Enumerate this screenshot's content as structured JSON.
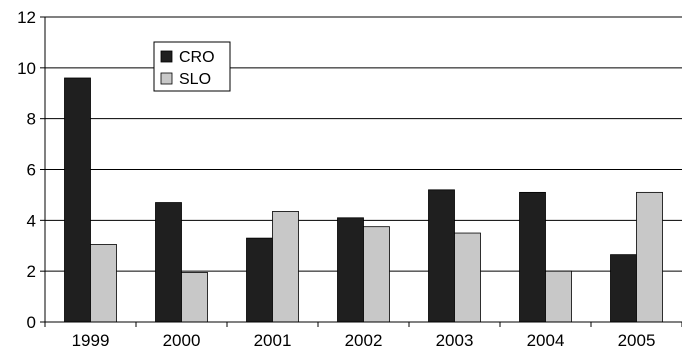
{
  "chart_data": {
    "type": "bar",
    "categories": [
      "1999",
      "2000",
      "2001",
      "2002",
      "2003",
      "2004",
      "2005"
    ],
    "series": [
      {
        "name": "CRO",
        "values": [
          9.6,
          4.7,
          3.3,
          4.1,
          5.2,
          5.1,
          2.65
        ],
        "color": "#1f1f1f"
      },
      {
        "name": "SLO",
        "values": [
          3.05,
          1.95,
          4.35,
          3.75,
          3.5,
          2.0,
          5.1
        ],
        "color": "#c8c8c8"
      }
    ],
    "ylim": [
      0,
      12
    ],
    "yticks": [
      "0",
      "2",
      "4",
      "6",
      "8",
      "10",
      "12"
    ],
    "grid": true,
    "legend_position": "top-left",
    "title": "",
    "xlabel": "",
    "ylabel": ""
  }
}
